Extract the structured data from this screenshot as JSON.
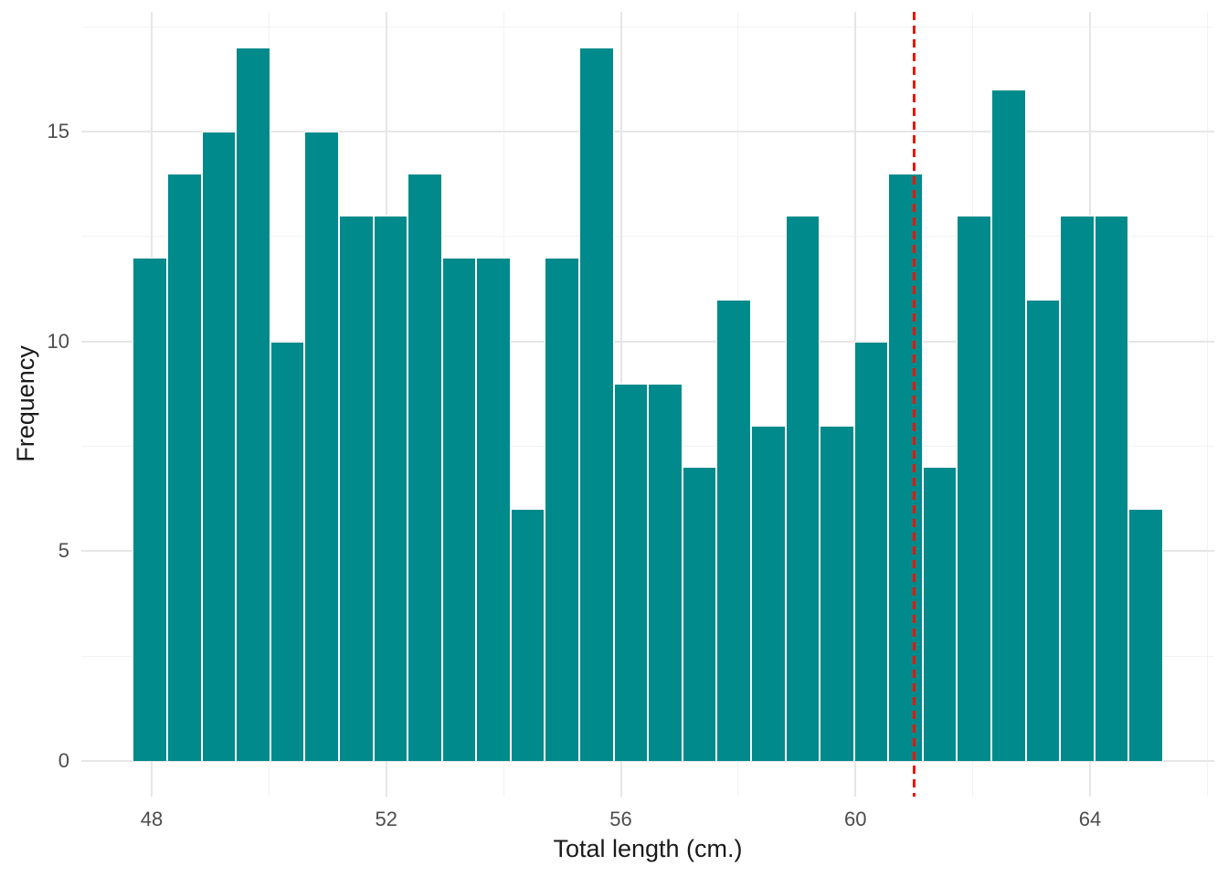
{
  "figure": {
    "background_color": "#FFFFFF",
    "bar_fill_color": "#008A8B",
    "bar_border_color": "#FFFFFF",
    "grid_major_color": "#E6E6E6",
    "grid_minor_color": "#F2F2F2",
    "axis_text_color": "#4D4D4D",
    "axis_title_color": "#1A1A1A",
    "vline_color": "#E8150D"
  },
  "chart_data": {
    "type": "bar",
    "subtype": "histogram",
    "title": "",
    "xlabel": "Total length (cm.)",
    "ylabel": "Frequency",
    "bin_start": 47.68,
    "bin_width": 0.5855,
    "counts": [
      12,
      14,
      15,
      17,
      10,
      15,
      13,
      13,
      14,
      12,
      12,
      6,
      12,
      17,
      9,
      9,
      7,
      11,
      8,
      13,
      8,
      10,
      14,
      7,
      13,
      16,
      11,
      13,
      13,
      6
    ],
    "x_ticks_major": [
      48,
      52,
      56,
      60,
      64
    ],
    "x_ticks_minor": [
      50,
      54,
      58,
      62,
      66
    ],
    "y_ticks_major": [
      0,
      5,
      10,
      15
    ],
    "y_ticks_minor": [
      2.5,
      7.5,
      12.5,
      17.5
    ],
    "xlim": [
      46.8,
      66.12
    ],
    "ylim": [
      -0.84,
      17.86
    ],
    "grid": "on",
    "legend": "none",
    "vline_x": 61,
    "vline_style": "dashed"
  }
}
